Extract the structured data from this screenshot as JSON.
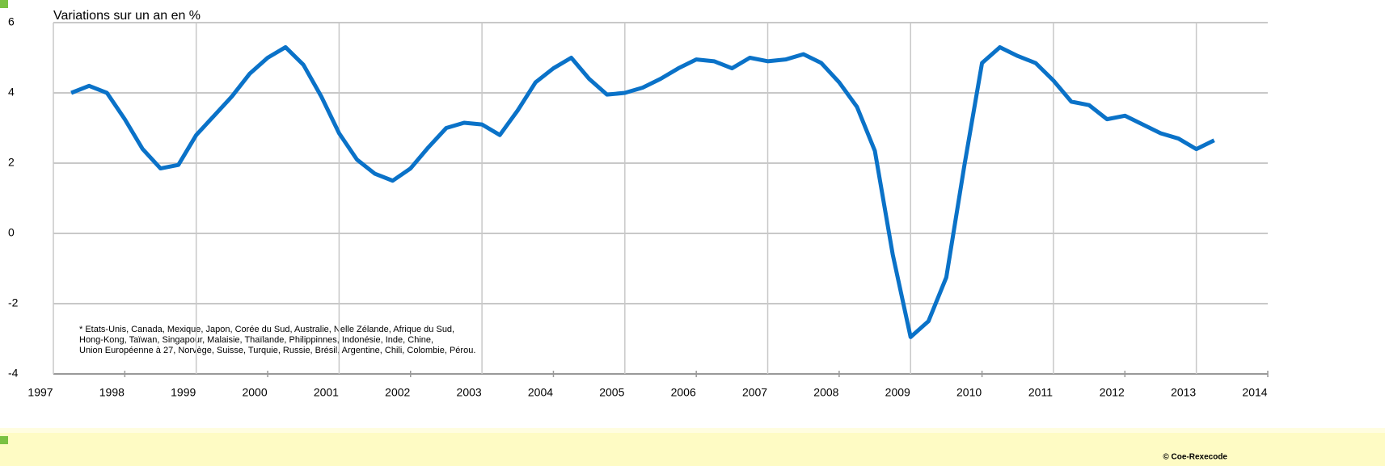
{
  "chart_data": {
    "type": "line",
    "title": "Variations sur un an en %",
    "note": [
      "* Etats-Unis, Canada, Mexique, Japon, Corée du Sud, Australie, Nelle Zélande, Afrique du Sud,",
      "Hong-Kong, Taïwan, Singapour, Malaisie, Thaïlande, Philippinnes, Indonésie, Inde, Chine,",
      "Union Européenne à 27, Norvège, Suisse, Turquie, Russie, Brésil, Argentine, Chili, Colombie, Pérou."
    ],
    "source": "© Coe-Rexecode",
    "x": [
      1997.25,
      1997.5,
      1997.75,
      1998,
      1998.25,
      1998.5,
      1998.75,
      1999,
      1999.25,
      1999.5,
      1999.75,
      2000,
      2000.25,
      2000.5,
      2000.75,
      2001,
      2001.25,
      2001.5,
      2001.75,
      2002,
      2002.25,
      2002.5,
      2002.75,
      2003,
      2003.25,
      2003.5,
      2003.75,
      2004,
      2004.25,
      2004.5,
      2004.75,
      2005,
      2005.25,
      2005.5,
      2005.75,
      2006,
      2006.25,
      2006.5,
      2006.75,
      2007,
      2007.25,
      2007.5,
      2007.75,
      2008,
      2008.25,
      2008.5,
      2008.75,
      2009,
      2009.25,
      2009.5,
      2009.75,
      2010,
      2010.25,
      2010.5,
      2010.75,
      2011,
      2011.25,
      2011.5,
      2011.75,
      2012,
      2012.25,
      2012.5,
      2012.75,
      2013,
      2013.25
    ],
    "series": [
      {
        "color": "#0a72c8",
        "values": [
          4.0,
          4.2,
          4.0,
          3.25,
          2.4,
          1.85,
          1.95,
          2.8,
          3.35,
          3.9,
          4.55,
          5.0,
          5.3,
          4.8,
          3.9,
          2.85,
          2.1,
          1.7,
          1.5,
          1.85,
          2.45,
          3.0,
          3.15,
          3.1,
          2.8,
          3.5,
          4.3,
          4.7,
          5.0,
          4.4,
          3.95,
          4.0,
          4.15,
          4.4,
          4.7,
          4.95,
          4.9,
          4.7,
          5.0,
          4.9,
          4.95,
          5.1,
          4.85,
          4.3,
          3.6,
          2.35,
          -0.6,
          -2.95,
          -2.5,
          -1.25,
          1.9,
          4.85,
          5.3,
          5.05,
          4.85,
          4.35,
          3.75,
          3.65,
          3.25,
          3.35,
          3.1,
          2.85,
          2.7,
          2.4,
          2.65
        ]
      }
    ],
    "xlim": [
      1997,
      2014
    ],
    "xticks": [
      1997,
      1998,
      1999,
      2000,
      2001,
      2002,
      2003,
      2004,
      2005,
      2006,
      2007,
      2008,
      2009,
      2010,
      2011,
      2012,
      2013,
      2014
    ],
    "ylim": [
      -4,
      6
    ],
    "yticks": [
      -4,
      -2,
      0,
      2,
      4,
      6
    ],
    "grid": true
  }
}
